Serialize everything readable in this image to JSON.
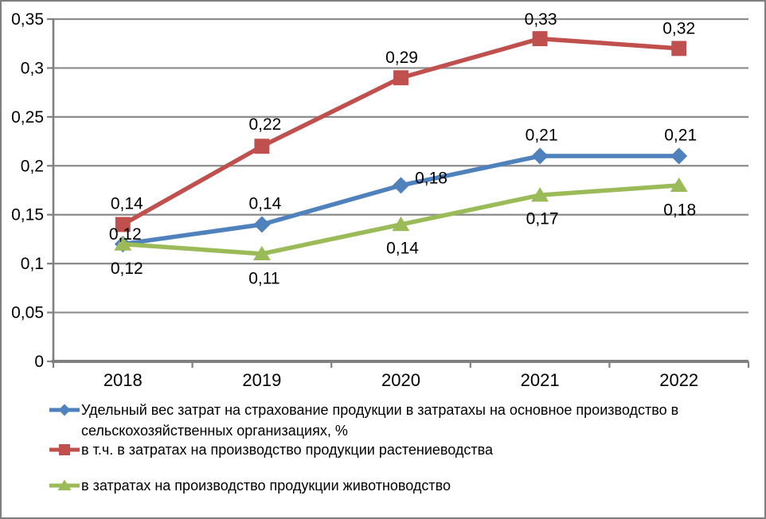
{
  "chart_data": {
    "type": "line",
    "title": "",
    "categories": [
      "2018",
      "2019",
      "2020",
      "2021",
      "2022"
    ],
    "series": [
      {
        "name": "Удельный вес затрат на страхование продукции в затратахы на основное производство в сельскохозяйственных организациях, %",
        "color": "#4F81BD",
        "marker": "diamond",
        "values": [
          0.12,
          0.14,
          0.18,
          0.21,
          0.21
        ],
        "labels": [
          "0,12",
          "0,14",
          "0,18",
          "0,21",
          "0,21"
        ],
        "label_offsets": [
          [
            3,
            -13
          ],
          [
            4,
            -27
          ],
          [
            38,
            -10
          ],
          [
            2,
            -27
          ],
          [
            2,
            -27
          ]
        ]
      },
      {
        "name": "в т.ч. в затратах на производство продукции растениеводства",
        "color": "#C0504D",
        "marker": "square",
        "values": [
          0.14,
          0.22,
          0.29,
          0.33,
          0.32
        ],
        "labels": [
          "0,14",
          "0,22",
          "0,29",
          "0,33",
          "0,32"
        ],
        "label_offsets": [
          [
            5,
            -27
          ],
          [
            4,
            -28
          ],
          [
            1,
            -26
          ],
          [
            1,
            -25
          ],
          [
            0,
            -26
          ]
        ]
      },
      {
        "name": "в затратах на производство продукции животноводство",
        "color": "#9BBB59",
        "marker": "triangle",
        "values": [
          0.12,
          0.11,
          0.14,
          0.17,
          0.18
        ],
        "labels": [
          "0,12",
          "0,11",
          "0,14",
          "0,17",
          "0,18"
        ],
        "label_offsets": [
          [
            5,
            30
          ],
          [
            3,
            30
          ],
          [
            2,
            29
          ],
          [
            3,
            29
          ],
          [
            1,
            30
          ]
        ]
      }
    ],
    "yticks": [
      {
        "value": 0,
        "label": "0"
      },
      {
        "value": 0.05,
        "label": "0,05"
      },
      {
        "value": 0.1,
        "label": "0,1"
      },
      {
        "value": 0.15,
        "label": "0,15"
      },
      {
        "value": 0.2,
        "label": "0,2"
      },
      {
        "value": 0.25,
        "label": "0,25"
      },
      {
        "value": 0.3,
        "label": "0,3"
      },
      {
        "value": 0.35,
        "label": "0,35"
      }
    ],
    "ylim": [
      0,
      0.35
    ],
    "xlabel": "",
    "ylabel": "",
    "grid": true,
    "legend_position": "bottom",
    "colors": {
      "gridline": "#8c8c8c",
      "axis": "#808080",
      "border": "#7f7f7f",
      "label_text": "#000000",
      "background": "#ffffff"
    }
  }
}
